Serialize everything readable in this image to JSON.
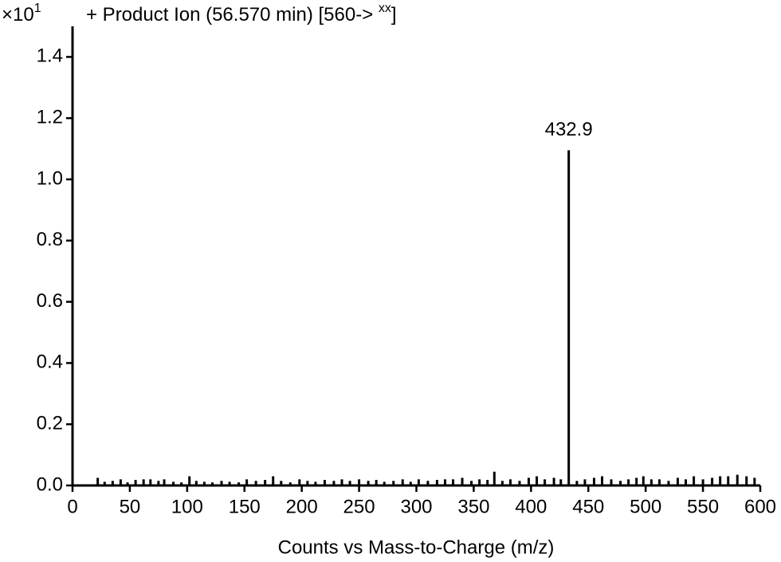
{
  "chart_data": {
    "type": "stem",
    "y_scale": "×10",
    "y_scale_exponent": "1",
    "title": "+ Product Ion (56.570 min) [560-> ",
    "title_superscript": "xx",
    "title_end": "]",
    "x_label": "Counts vs Mass-to-Charge (m/z)",
    "color": "#000000",
    "xlim": [
      0,
      600
    ],
    "ylim": [
      0,
      1.5
    ],
    "xticks": [
      0,
      50,
      100,
      150,
      200,
      250,
      300,
      350,
      400,
      450,
      500,
      550,
      600
    ],
    "yticks": [
      {
        "value": 0,
        "label": "0.0"
      },
      {
        "value": 0.2,
        "label": "0.2"
      },
      {
        "value": 0.4,
        "label": "0.4"
      },
      {
        "value": 0.6,
        "label": "0.6"
      },
      {
        "value": 0.8,
        "label": "0.8"
      },
      {
        "value": 1.0,
        "label": "1.0"
      },
      {
        "value": 1.2,
        "label": "1.2"
      },
      {
        "value": 1.4,
        "label": "1.4"
      }
    ],
    "x": [
      22,
      28,
      35,
      42,
      48,
      55,
      62,
      68,
      75,
      80,
      88,
      95,
      102,
      108,
      115,
      122,
      130,
      137,
      145,
      152,
      160,
      168,
      175,
      182,
      190,
      198,
      205,
      212,
      220,
      228,
      235,
      242,
      250,
      258,
      265,
      272,
      280,
      288,
      295,
      302,
      310,
      318,
      325,
      332,
      340,
      348,
      355,
      362,
      368,
      375,
      382,
      390,
      398,
      405,
      412,
      420,
      426,
      432.9,
      440,
      447,
      455,
      462,
      470,
      478,
      485,
      492,
      498,
      505,
      512,
      520,
      528,
      535,
      542,
      550,
      558,
      565,
      572,
      580,
      588,
      595
    ],
    "values": [
      0.025,
      0.012,
      0.015,
      0.02,
      0.01,
      0.018,
      0.02,
      0.02,
      0.015,
      0.02,
      0.012,
      0.01,
      0.03,
      0.015,
      0.012,
      0.01,
      0.015,
      0.012,
      0.01,
      0.02,
      0.015,
      0.018,
      0.03,
      0.015,
      0.01,
      0.02,
      0.015,
      0.012,
      0.018,
      0.015,
      0.02,
      0.015,
      0.02,
      0.015,
      0.018,
      0.012,
      0.015,
      0.02,
      0.012,
      0.02,
      0.015,
      0.018,
      0.02,
      0.02,
      0.025,
      0.015,
      0.02,
      0.018,
      0.045,
      0.015,
      0.02,
      0.015,
      0.025,
      0.03,
      0.02,
      0.025,
      0.02,
      1.095,
      0.015,
      0.02,
      0.025,
      0.03,
      0.02,
      0.015,
      0.02,
      0.025,
      0.03,
      0.02,
      0.02,
      0.015,
      0.025,
      0.02,
      0.03,
      0.02,
      0.025,
      0.03,
      0.03,
      0.035,
      0.03,
      0.025
    ],
    "annotations": [
      {
        "text": "432.9",
        "x": 432.9,
        "y": 1.095
      }
    ]
  }
}
